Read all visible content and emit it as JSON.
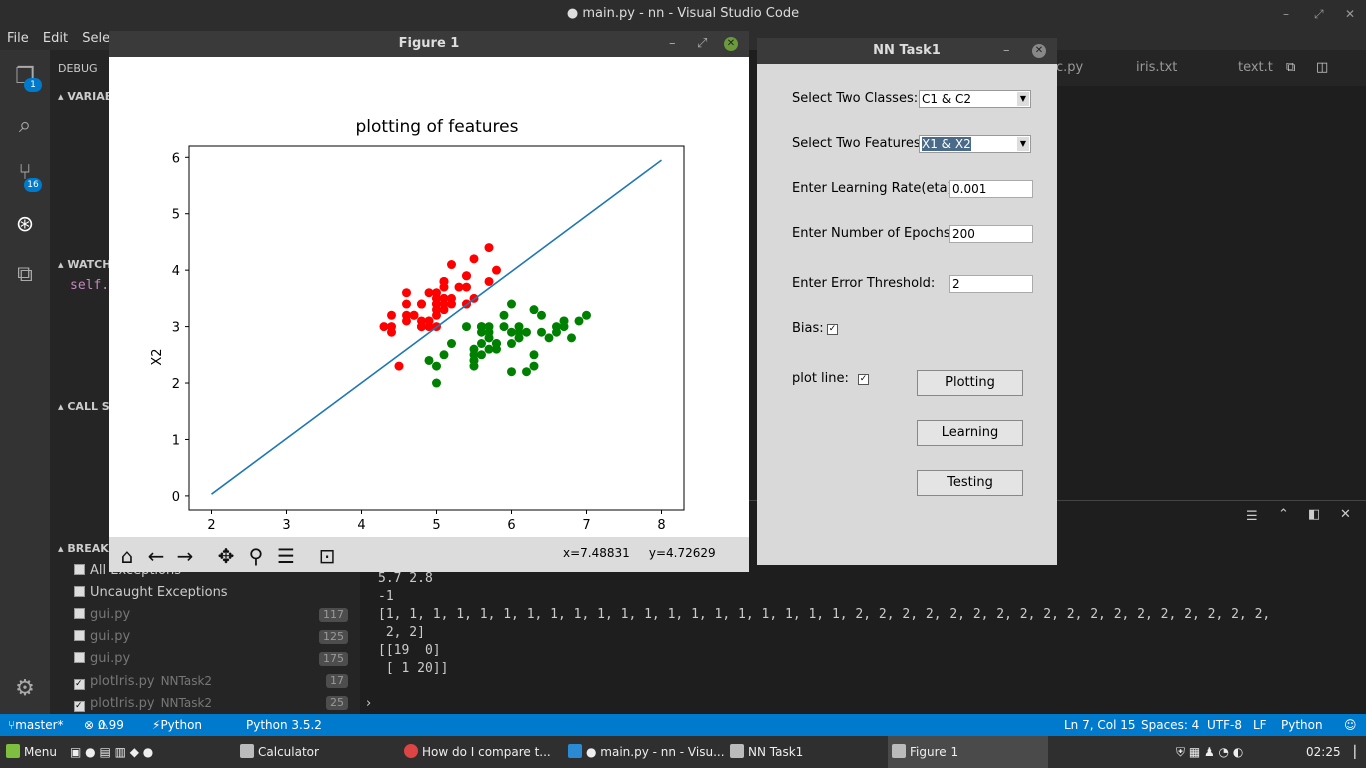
{
  "vscode": {
    "title": "● main.py - nn - Visual Studio Code",
    "menu": [
      "File",
      "Edit",
      "Selection"
    ],
    "activity_badges": {
      "explorer": "1",
      "scm": "16"
    },
    "sections": {
      "debug": "DEBUG",
      "variables": "VARIABLES",
      "watch": "WATCH",
      "call_stack": "CALL STACK",
      "breakpoints": "BREAKPOINTS"
    },
    "watch_item": "self.",
    "breakpoints": [
      {
        "label": "All Exceptions",
        "path": "",
        "line": "",
        "checked": false
      },
      {
        "label": "Uncaught Exceptions",
        "path": "",
        "line": "",
        "checked": false
      },
      {
        "label": "gui.py",
        "path": "",
        "line": "117",
        "checked": false
      },
      {
        "label": "gui.py",
        "path": "",
        "line": "125",
        "checked": false
      },
      {
        "label": "gui.py",
        "path": "",
        "line": "175",
        "checked": false
      },
      {
        "label": "plotIris.py",
        "path": "NNTask2",
        "line": "17",
        "checked": true
      },
      {
        "label": "plotIris.py",
        "path": "NNTask2",
        "line": "25",
        "checked": true
      }
    ],
    "tabs": [
      "c.py",
      "iris.txt",
      "text.t"
    ],
    "terminal_lines": [
      "5.7 2.8",
      "-1",
      "[1, 1, 1, 1, 1, 1, 1, 1, 1, 1, 1, 1, 1, 1, 1, 1, 1, 1, 1, 1, 2, 2, 2, 2, 2, 2, 2, 2, 2, 2, 2, 2, 2, 2, 2, 2, 2, 2,",
      " 2, 2]",
      "[[19  0]",
      " [ 1 20]]"
    ],
    "prompt": "›",
    "status": {
      "branch": "master*",
      "errors": "0",
      "warnings": "99",
      "interpreter": "Python (nn)",
      "version": "Python 3.5.2",
      "position": "Ln 7, Col 15",
      "spaces": "Spaces: 4",
      "encoding": "UTF-8",
      "eol": "LF",
      "language": "Python"
    }
  },
  "figure": {
    "window_title": "Figure 1",
    "coords": "x=7.48831     y=4.72629"
  },
  "chart_data": {
    "type": "scatter",
    "title": "plotting of features",
    "xlabel": "X1",
    "ylabel": "X2",
    "xlim": [
      1.7,
      8.3
    ],
    "ylim": [
      -0.25,
      6.2
    ],
    "xticks": [
      2,
      3,
      4,
      5,
      6,
      7,
      8
    ],
    "yticks": [
      0,
      1,
      2,
      3,
      4,
      5,
      6
    ],
    "series": [
      {
        "color": "#ff0000",
        "points": [
          [
            5.1,
            3.5
          ],
          [
            4.9,
            3.0
          ],
          [
            4.7,
            3.2
          ],
          [
            4.6,
            3.1
          ],
          [
            5.0,
            3.6
          ],
          [
            5.4,
            3.9
          ],
          [
            4.6,
            3.4
          ],
          [
            5.0,
            3.4
          ],
          [
            4.4,
            2.9
          ],
          [
            4.9,
            3.1
          ],
          [
            5.4,
            3.7
          ],
          [
            4.8,
            3.4
          ],
          [
            4.8,
            3.0
          ],
          [
            4.3,
            3.0
          ],
          [
            5.8,
            4.0
          ],
          [
            5.7,
            4.4
          ],
          [
            5.4,
            3.9
          ],
          [
            5.1,
            3.5
          ],
          [
            5.7,
            3.8
          ],
          [
            5.1,
            3.8
          ],
          [
            5.4,
            3.4
          ],
          [
            5.1,
            3.7
          ],
          [
            4.6,
            3.6
          ],
          [
            5.1,
            3.3
          ],
          [
            4.8,
            3.4
          ],
          [
            5.0,
            3.0
          ],
          [
            5.0,
            3.4
          ],
          [
            5.2,
            3.5
          ],
          [
            5.2,
            3.4
          ],
          [
            4.7,
            3.2
          ],
          [
            4.8,
            3.1
          ],
          [
            5.4,
            3.4
          ],
          [
            5.2,
            4.1
          ],
          [
            5.5,
            4.2
          ],
          [
            4.9,
            3.1
          ],
          [
            5.0,
            3.2
          ],
          [
            5.5,
            3.5
          ],
          [
            4.9,
            3.6
          ],
          [
            4.4,
            3.0
          ],
          [
            5.1,
            3.4
          ],
          [
            5.0,
            3.5
          ],
          [
            4.5,
            2.3
          ],
          [
            4.4,
            3.2
          ],
          [
            5.0,
            3.5
          ],
          [
            5.1,
            3.8
          ],
          [
            4.8,
            3.0
          ],
          [
            5.1,
            3.8
          ],
          [
            4.6,
            3.2
          ],
          [
            5.3,
            3.7
          ],
          [
            5.0,
            3.3
          ]
        ]
      },
      {
        "color": "#008000",
        "points": [
          [
            7.0,
            3.2
          ],
          [
            6.4,
            3.2
          ],
          [
            6.9,
            3.1
          ],
          [
            5.5,
            2.3
          ],
          [
            6.5,
            2.8
          ],
          [
            5.7,
            2.8
          ],
          [
            6.3,
            3.3
          ],
          [
            4.9,
            2.4
          ],
          [
            6.6,
            2.9
          ],
          [
            5.2,
            2.7
          ],
          [
            5.0,
            2.0
          ],
          [
            5.9,
            3.0
          ],
          [
            6.0,
            2.2
          ],
          [
            6.1,
            2.9
          ],
          [
            5.6,
            2.9
          ],
          [
            6.7,
            3.1
          ],
          [
            5.6,
            3.0
          ],
          [
            5.8,
            2.7
          ],
          [
            6.2,
            2.2
          ],
          [
            5.6,
            2.5
          ],
          [
            5.9,
            3.2
          ],
          [
            6.1,
            2.8
          ],
          [
            6.3,
            2.5
          ],
          [
            6.1,
            2.8
          ],
          [
            6.4,
            2.9
          ],
          [
            6.6,
            3.0
          ],
          [
            6.8,
            2.8
          ],
          [
            6.7,
            3.0
          ],
          [
            6.0,
            2.9
          ],
          [
            5.7,
            2.6
          ],
          [
            5.5,
            2.4
          ],
          [
            5.5,
            2.4
          ],
          [
            5.8,
            2.7
          ],
          [
            6.0,
            2.7
          ],
          [
            5.4,
            3.0
          ],
          [
            6.0,
            3.4
          ],
          [
            6.7,
            3.1
          ],
          [
            6.3,
            2.3
          ],
          [
            5.6,
            3.0
          ],
          [
            5.5,
            2.5
          ],
          [
            5.5,
            2.6
          ],
          [
            6.1,
            3.0
          ],
          [
            5.8,
            2.6
          ],
          [
            5.0,
            2.3
          ],
          [
            5.6,
            2.7
          ],
          [
            5.7,
            3.0
          ],
          [
            5.7,
            2.9
          ],
          [
            6.2,
            2.9
          ],
          [
            5.1,
            2.5
          ],
          [
            5.7,
            2.8
          ]
        ]
      }
    ],
    "line": {
      "color": "#1f77b4",
      "x": [
        2.0,
        8.0
      ],
      "y": [
        0.03,
        5.95
      ]
    }
  },
  "nn_task": {
    "window_title": "NN Task1",
    "classes_label": "Select Two Classes:",
    "classes_value": "C1 & C2",
    "features_label": "Select Two Features:",
    "features_value": "X1 & X2",
    "eta_label": "Enter Learning Rate(eta):",
    "eta_value": "0.001",
    "epochs_label": "Enter Number of Epochs:",
    "epochs_value": "200",
    "threshold_label": "Enter Error Threshold:",
    "threshold_value": "2",
    "bias_label": "Bias:",
    "bias_checked": true,
    "plotline_label": "plot line:",
    "plotline_checked": true,
    "buttons": {
      "plotting": "Plotting",
      "learning": "Learning",
      "testing": "Testing"
    }
  },
  "taskbar": {
    "menu": "Menu",
    "windows": [
      "Calculator",
      "How do I compare t...",
      "● main.py - nn - Visu...",
      "NN Task1",
      "Figure 1"
    ],
    "clock": "02:25"
  }
}
